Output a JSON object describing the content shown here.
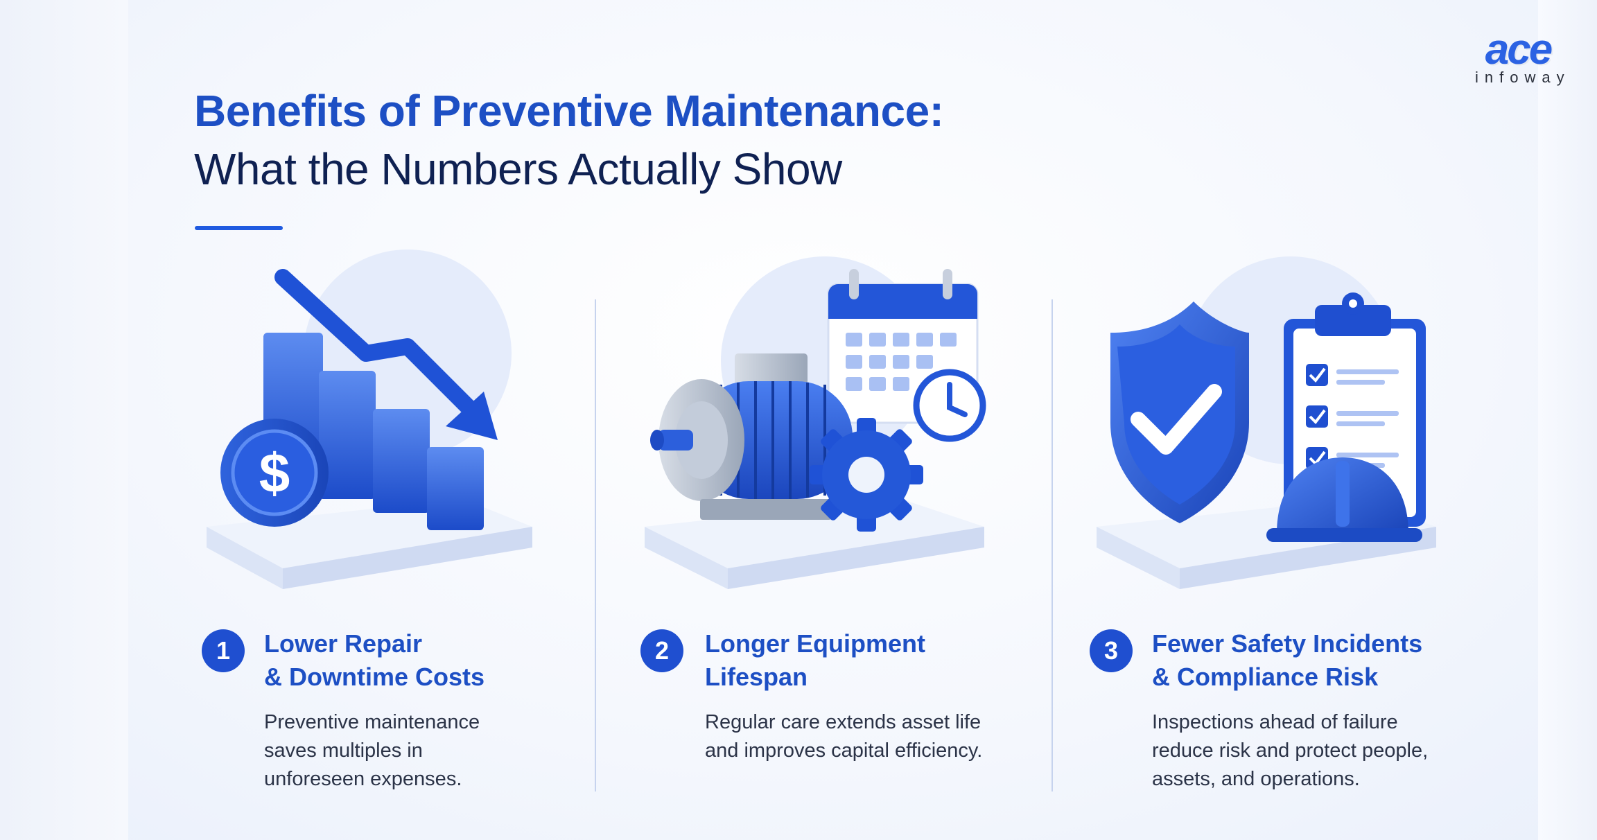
{
  "logo": {
    "word": "ace",
    "sub": "infoway"
  },
  "title": {
    "line1": "Benefits of Preventive Maintenance:",
    "line2": "What the Numbers Actually Show"
  },
  "cards": [
    {
      "number": "1",
      "title_lines": [
        "Lower Repair",
        "& Downtime Costs"
      ],
      "text_lines": [
        "Preventive maintenance",
        "saves multiples in",
        "unforeseen expenses."
      ],
      "illustration": "cost-reduction-chart-with-dollar-coin"
    },
    {
      "number": "2",
      "title_lines": [
        "Longer Equipment",
        "Lifespan"
      ],
      "text_lines": [
        "Regular care extends asset life",
        "and improves capital efficiency."
      ],
      "illustration": "motor-gear-calendar-clock"
    },
    {
      "number": "3",
      "title_lines": [
        "Fewer Safety Incidents",
        "& Compliance Risk"
      ],
      "text_lines": [
        "Inspections ahead of failure",
        "reduce risk and protect people,",
        "assets, and operations."
      ],
      "illustration": "shield-checklist-hardhat"
    }
  ],
  "colors": {
    "brand_blue": "#1d4fc4",
    "accent_blue": "#2b62e3",
    "navy": "#0f2152",
    "body_text": "#2b3347"
  }
}
